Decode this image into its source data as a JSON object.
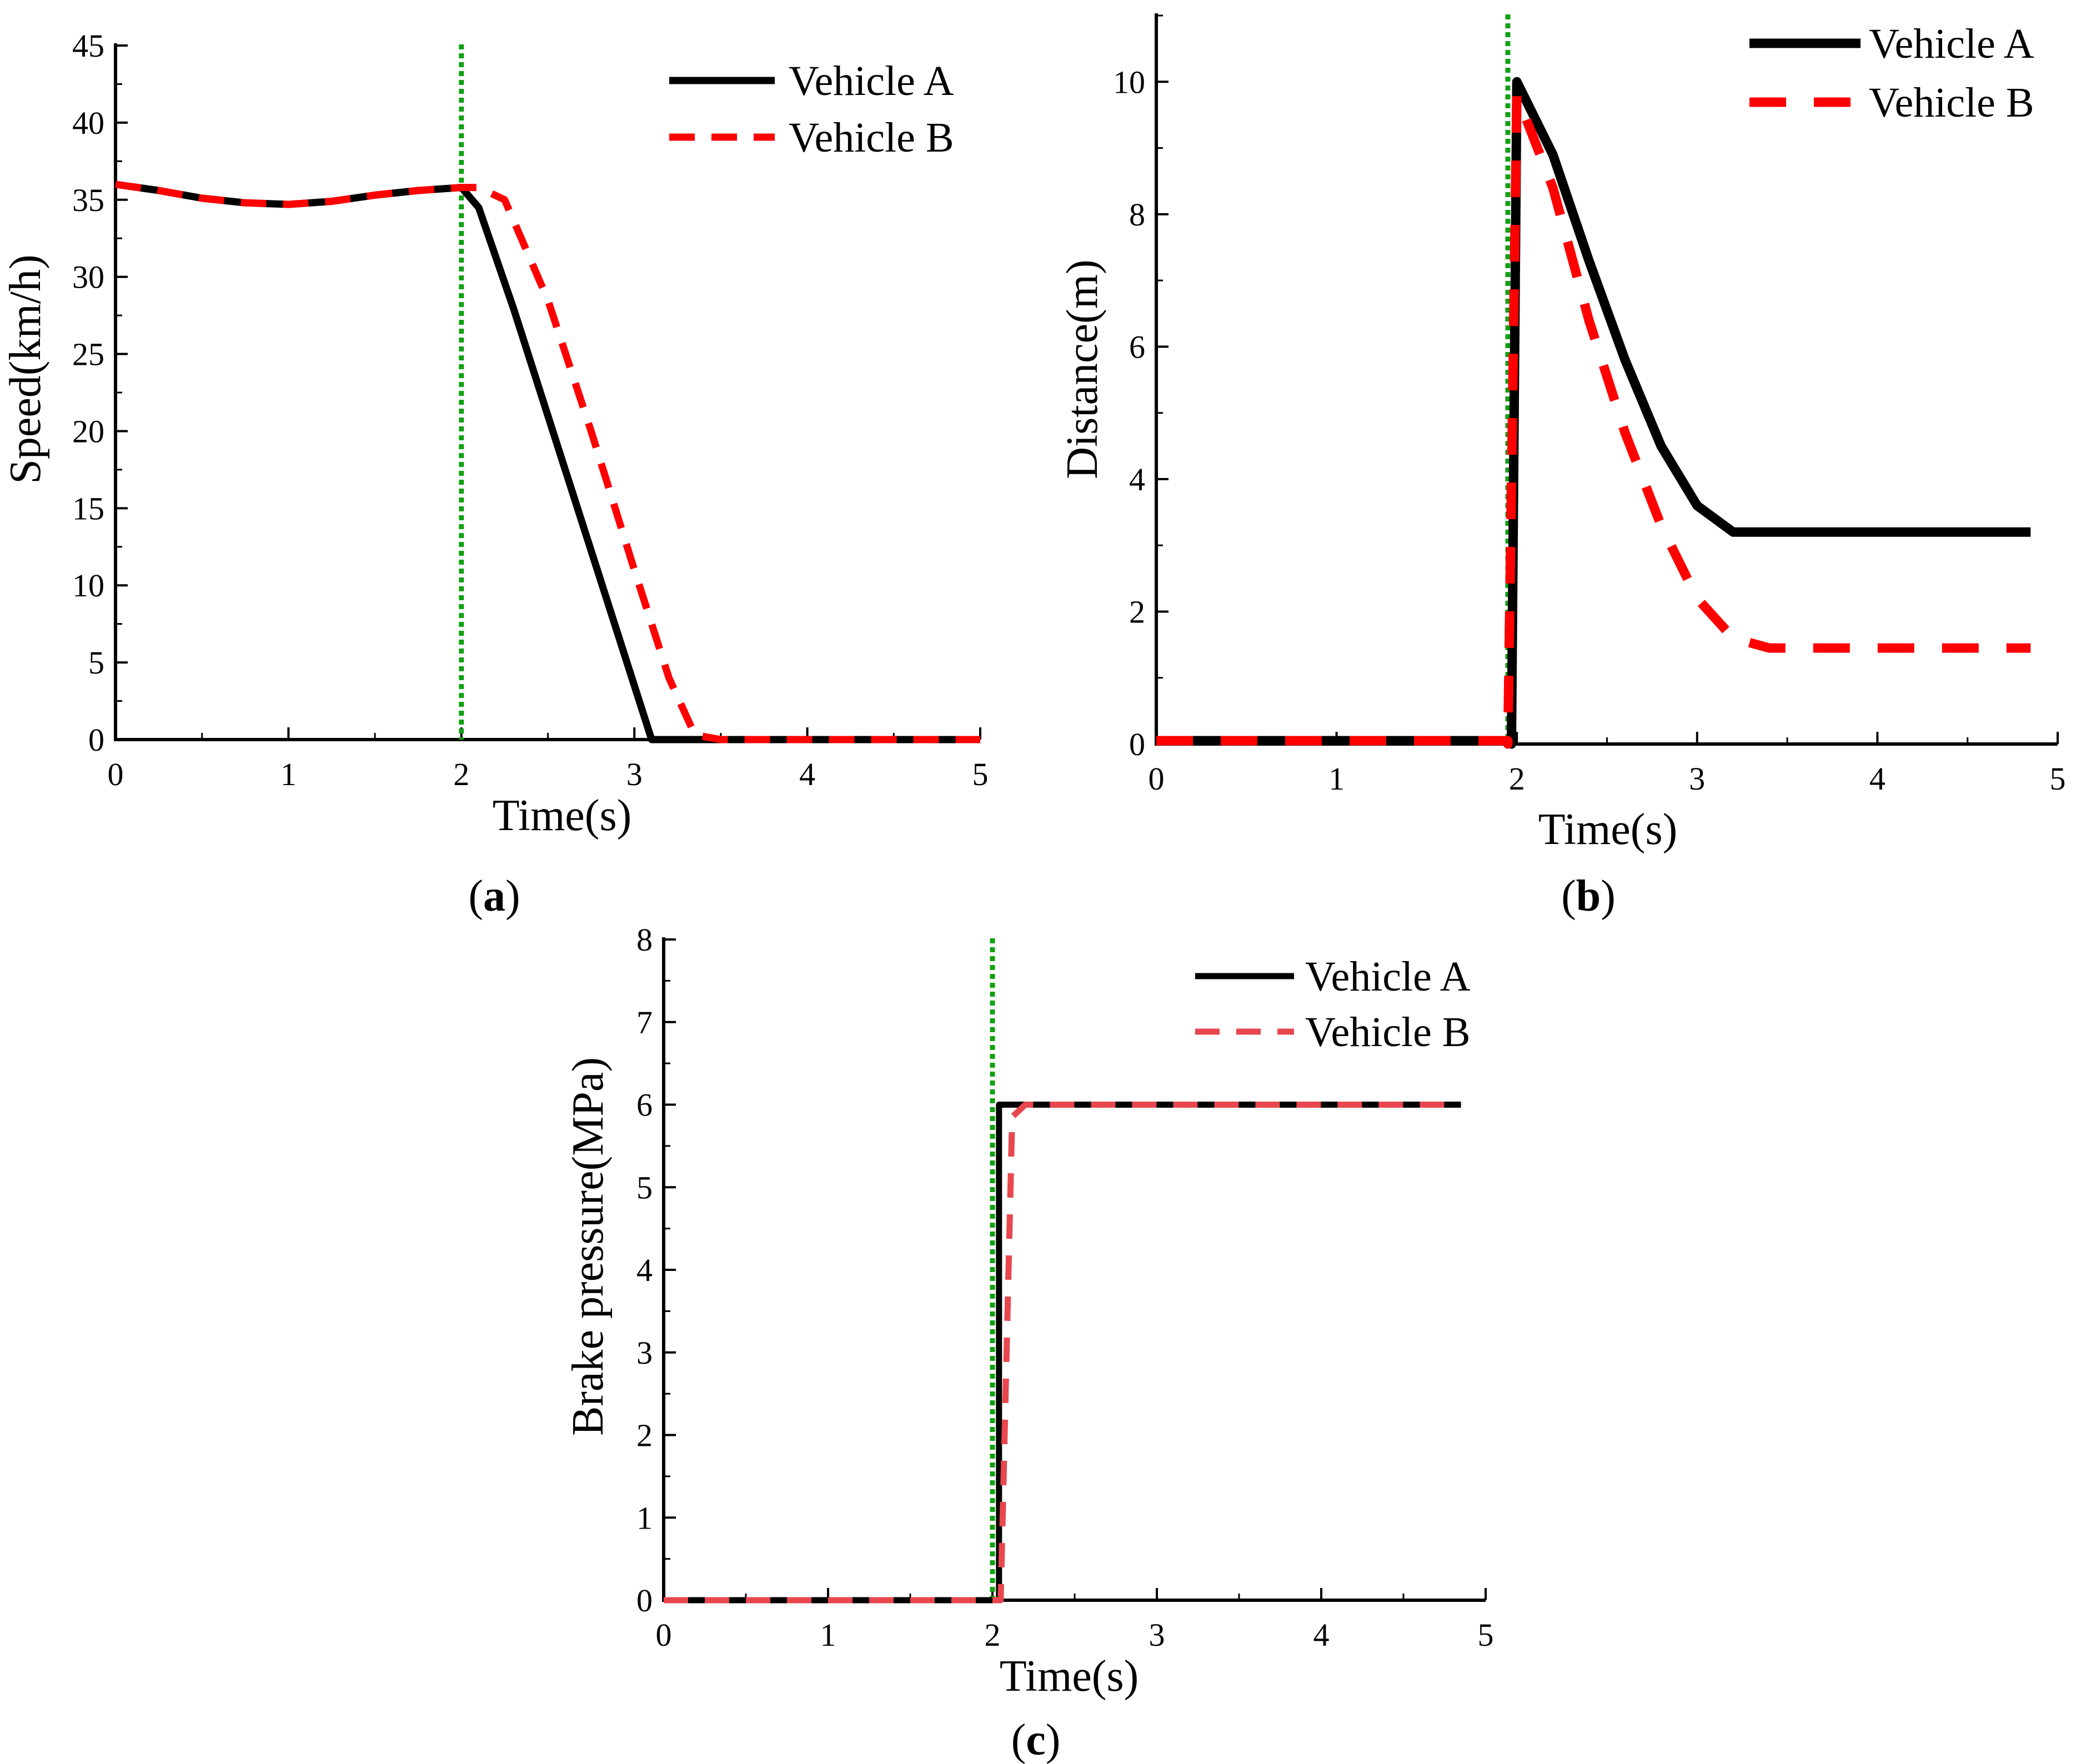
{
  "colors": {
    "vehicle_a": "#000000",
    "vehicle_b_a": "#ff0000",
    "vehicle_b_b": "#ff0000",
    "vehicle_b_c": "#e8474e",
    "marker_line": "#12a012"
  },
  "chart_data": [
    {
      "type": "line",
      "id": "a",
      "caption": {
        "open": "(",
        "letter": "a",
        "close": ")"
      },
      "xlabel": "Time(s)",
      "ylabel": "Speed(km/h)",
      "xlim": [
        0,
        5
      ],
      "ylim": [
        0,
        45
      ],
      "xticks": [
        "0",
        "1",
        "2",
        "3",
        "4",
        "5"
      ],
      "yticks": [
        "0",
        "5",
        "10",
        "15",
        "20",
        "25",
        "30",
        "35",
        "40",
        "45"
      ],
      "event_line_x": 2.0,
      "legend_position": "top-right",
      "series": [
        {
          "name": "Vehicle A",
          "style": "solid",
          "x": [
            0,
            0.25,
            0.5,
            0.75,
            1.0,
            1.25,
            1.5,
            1.75,
            2.0,
            2.1,
            2.3,
            2.5,
            2.7,
            2.9,
            3.1,
            3.3,
            3.5,
            4.0,
            4.5,
            5.0
          ],
          "values": [
            36.0,
            35.6,
            35.1,
            34.8,
            34.7,
            34.9,
            35.3,
            35.6,
            35.8,
            34.5,
            28.0,
            21.0,
            14.0,
            7.0,
            0.0,
            0.0,
            0.0,
            0.0,
            0.0,
            0.0
          ]
        },
        {
          "name": "Vehicle B",
          "style": "dashed",
          "x": [
            0,
            0.25,
            0.5,
            0.75,
            1.0,
            1.25,
            1.5,
            1.75,
            2.0,
            2.1,
            2.25,
            2.5,
            2.75,
            3.0,
            3.2,
            3.35,
            3.5,
            4.0,
            4.5,
            5.0
          ],
          "values": [
            36.0,
            35.6,
            35.1,
            34.8,
            34.7,
            34.9,
            35.3,
            35.6,
            35.8,
            35.8,
            35.0,
            28.5,
            20.0,
            11.0,
            4.0,
            0.3,
            0.0,
            0.0,
            0.0,
            0.0
          ]
        }
      ]
    },
    {
      "type": "line",
      "id": "b",
      "caption": {
        "open": "(",
        "letter": "b",
        "close": ")"
      },
      "xlabel": "Time(s)",
      "ylabel": "Distance(m)",
      "xlim": [
        0,
        5
      ],
      "ylim": [
        0,
        11
      ],
      "xticks": [
        "0",
        "1",
        "2",
        "3",
        "4",
        "5"
      ],
      "yticks": [
        "0",
        "2",
        "4",
        "6",
        "8",
        "10"
      ],
      "event_line_x": 1.95,
      "legend_position": "top-right",
      "series": [
        {
          "name": "Vehicle A",
          "style": "solid",
          "x": [
            0,
            1.97,
            1.97,
            2.0,
            2.2,
            2.4,
            2.6,
            2.8,
            3.0,
            3.2,
            3.6,
            4.0,
            4.5,
            4.85
          ],
          "values": [
            0.05,
            0.05,
            0.0,
            10.0,
            8.9,
            7.3,
            5.8,
            4.5,
            3.6,
            3.2,
            3.2,
            3.2,
            3.2,
            3.2
          ]
        },
        {
          "name": "Vehicle B",
          "style": "dashed",
          "x": [
            0,
            1.95,
            1.95,
            2.0,
            2.2,
            2.4,
            2.6,
            2.8,
            3.0,
            3.2,
            3.4,
            3.6,
            4.0,
            4.5,
            4.85
          ],
          "values": [
            0.05,
            0.05,
            0.0,
            9.8,
            8.4,
            6.4,
            4.7,
            3.3,
            2.2,
            1.6,
            1.45,
            1.45,
            1.45,
            1.45,
            1.45
          ]
        }
      ]
    },
    {
      "type": "line",
      "id": "c",
      "caption": {
        "open": "(",
        "letter": "c",
        "close": ")"
      },
      "xlabel": "Time(s)",
      "ylabel": "Brake pressure(MPa)",
      "xlim": [
        0,
        5
      ],
      "ylim": [
        0,
        8
      ],
      "xticks": [
        "0",
        "1",
        "2",
        "3",
        "4",
        "5"
      ],
      "yticks": [
        "0",
        "1",
        "2",
        "3",
        "4",
        "5",
        "6",
        "7",
        "8"
      ],
      "event_line_x": 2.0,
      "legend_position": "top-right",
      "series": [
        {
          "name": "Vehicle A",
          "style": "solid",
          "x": [
            0,
            2.04,
            2.04,
            4.85
          ],
          "values": [
            0.0,
            0.0,
            6.0,
            6.0
          ]
        },
        {
          "name": "Vehicle B",
          "style": "dashed",
          "x": [
            0,
            2.05,
            2.12,
            2.2,
            4.85
          ],
          "values": [
            0.0,
            0.0,
            5.85,
            6.0,
            6.0
          ]
        }
      ]
    }
  ]
}
